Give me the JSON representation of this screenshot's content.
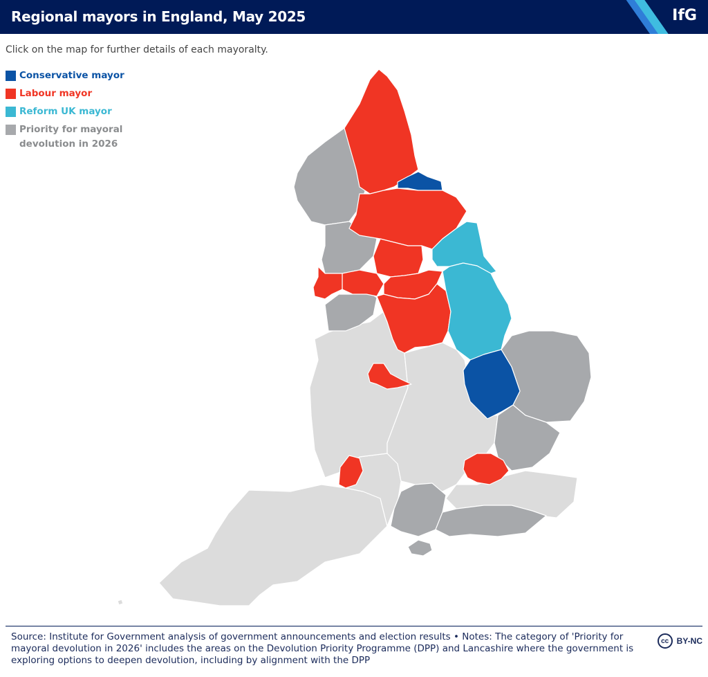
{
  "header": {
    "title": "Regional mayors in England, May 2025",
    "logo": "IfG"
  },
  "subtitle": "Click on the map for further details of each mayoralty.",
  "colors": {
    "conservative": "#0b53a5",
    "labour": "#f03524",
    "reform": "#3bb8d3",
    "priority": "#a7a9ac",
    "other": "#dcdcdc"
  },
  "legend": [
    {
      "label": "Conservative mayor",
      "color": "#0b53a5"
    },
    {
      "label": "Labour mayor",
      "color": "#f03524"
    },
    {
      "label": "Reform UK mayor",
      "color": "#3bb8d3"
    },
    {
      "label": "Priority for mayoral\ndevolution in 2026",
      "color": "#a7a9ac"
    }
  ],
  "footer": {
    "text": "Source: Institute for Government analysis of government announcements and election results • Notes: The category of 'Priority for mayoral devolution in 2026' includes the areas on the Devolution Priority Programme (DPP) and Lancashire where the government is exploring options to deepen devolution, including by alignment with the DPP",
    "license_icon": "cc-icon",
    "license": "BY-NC"
  }
}
